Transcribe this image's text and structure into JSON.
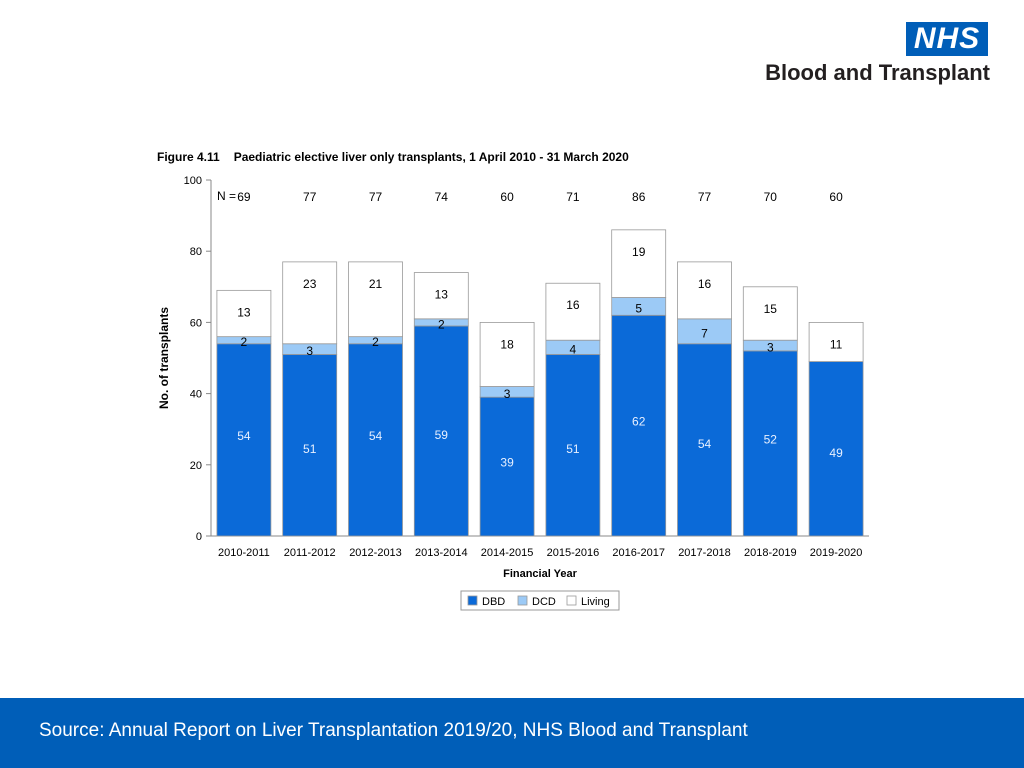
{
  "logo": {
    "mark": "NHS",
    "subtitle": "Blood and Transplant"
  },
  "figure": {
    "number": "Figure 4.11",
    "title": "Paediatric elective liver only transplants, 1 April 2010 - 31 March 2020"
  },
  "footer": {
    "source": "Source: Annual Report on Liver Transplantation 2019/20, NHS Blood and Transplant"
  },
  "chart_data": {
    "type": "bar",
    "stacked": true,
    "title": "Paediatric elective liver only transplants, 1 April 2010 - 31 March 2020",
    "xlabel": "Financial Year",
    "ylabel": "No. of transplants",
    "ylim": [
      0,
      100
    ],
    "yticks": [
      0,
      20,
      40,
      60,
      80,
      100
    ],
    "n_prefix": "N =",
    "categories": [
      "2010-2011",
      "2011-2012",
      "2012-2013",
      "2013-2014",
      "2014-2015",
      "2015-2016",
      "2016-2017",
      "2017-2018",
      "2018-2019",
      "2019-2020"
    ],
    "totals": [
      69,
      77,
      77,
      74,
      60,
      71,
      86,
      77,
      70,
      60
    ],
    "series": [
      {
        "name": "DBD",
        "color": "#0b6ad8",
        "label_color": "#e8f0ff",
        "values": [
          54,
          51,
          54,
          59,
          39,
          51,
          62,
          54,
          52,
          49
        ]
      },
      {
        "name": "DCD",
        "color": "#9ccaf6",
        "label_color": "#000000",
        "values": [
          2,
          3,
          2,
          2,
          3,
          4,
          5,
          7,
          3,
          0
        ]
      },
      {
        "name": "Living",
        "color": "#ffffff",
        "label_color": "#000000",
        "values": [
          13,
          23,
          21,
          13,
          18,
          16,
          19,
          16,
          15,
          11
        ]
      }
    ],
    "legend": "bottom-center"
  }
}
